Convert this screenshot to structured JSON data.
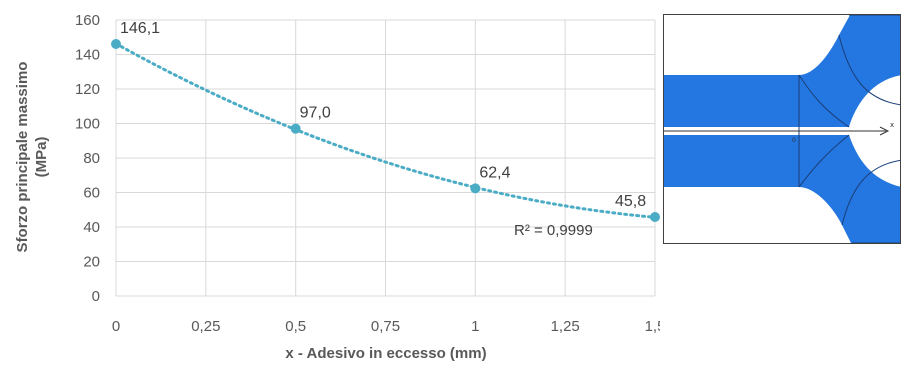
{
  "chart_data": {
    "type": "scatter",
    "title": "",
    "xlabel": "x - Adesivo in eccesso (mm)",
    "ylabel_lines": [
      "Sforzo principale massimo",
      "(MPa)"
    ],
    "xlim": [
      0,
      1.5
    ],
    "ylim": [
      0,
      160
    ],
    "x_ticks": [
      "0",
      "0,25",
      "0,5",
      "0,75",
      "1",
      "1,25",
      "1,5"
    ],
    "y_ticks": [
      "0",
      "20",
      "40",
      "60",
      "80",
      "100",
      "120",
      "140",
      "160"
    ],
    "grid": true,
    "legend": "none",
    "series": [
      {
        "x": [
          0,
          0.5,
          1,
          1.5
        ],
        "y": [
          146.1,
          97.0,
          62.4,
          45.8
        ],
        "data_labels": [
          "146,1",
          "97,0",
          "62,4",
          "45,8"
        ],
        "color": "#4BACC6"
      }
    ],
    "trendline": {
      "type": "polynomial",
      "style": "dotted",
      "color": "#4BACC6",
      "r2_label": "R² = 0,9999"
    }
  },
  "inset": {
    "axis_label": "x",
    "origin_label": "0",
    "fill_color": "#2476E0",
    "edge_color": "#1A3F7A"
  }
}
